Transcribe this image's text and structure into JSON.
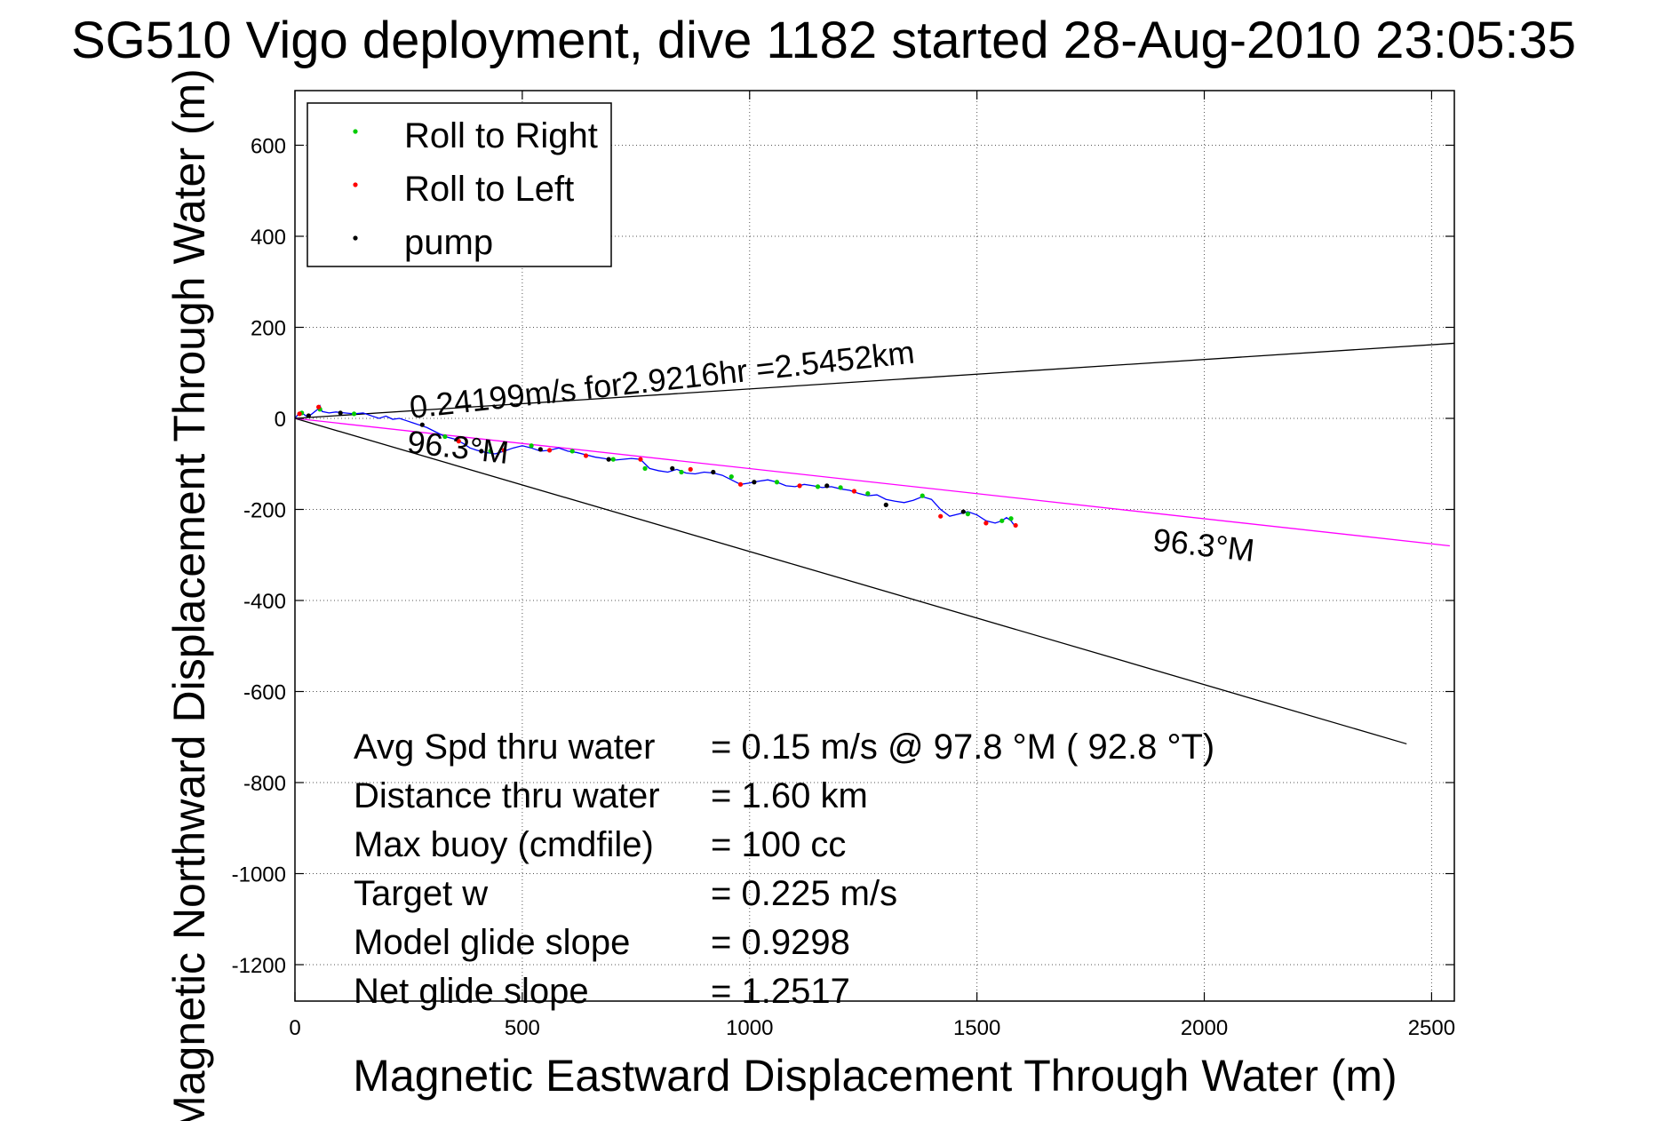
{
  "chart_data": {
    "type": "line",
    "title": "SG510 Vigo deployment, dive 1182 started 28-Aug-2010 23:05:35",
    "xlabel": "Magnetic Eastward Displacement Through Water (m)",
    "ylabel": "Magnetic Northward Displacement Through Water (m)",
    "xlim": [
      0,
      2550
    ],
    "ylim": [
      -1280,
      720
    ],
    "xticks": [
      0,
      500,
      1000,
      1500,
      2000,
      2500
    ],
    "yticks": [
      600,
      400,
      200,
      0,
      -200,
      -400,
      -600,
      -800,
      -1000,
      -1200
    ],
    "grid": true,
    "legend_position": "top-left",
    "legend": [
      {
        "label": "Roll to Right",
        "color": "#00cc00"
      },
      {
        "label": "Roll to Left",
        "color": "#ff0000"
      },
      {
        "label": "pump",
        "color": "#000000"
      }
    ],
    "series": [
      {
        "color": "#0000ff",
        "x": [
          0,
          8,
          15,
          25,
          35,
          50,
          55,
          60,
          75,
          90,
          110,
          130,
          150,
          170,
          185,
          200,
          215,
          230,
          245,
          260,
          275,
          290,
          310,
          330,
          350,
          370,
          385,
          400,
          420,
          440,
          460,
          480,
          500,
          520,
          540,
          560,
          580,
          600,
          620,
          640,
          660,
          680,
          700,
          720,
          740,
          760,
          780,
          800,
          820,
          840,
          860,
          880,
          900,
          920,
          940,
          960,
          980,
          1000,
          1020,
          1040,
          1060,
          1080,
          1100,
          1120,
          1140,
          1160,
          1180,
          1200,
          1220,
          1240,
          1260,
          1280,
          1300,
          1320,
          1340,
          1360,
          1380,
          1400,
          1420,
          1440,
          1460,
          1480,
          1500,
          1520,
          1540,
          1555,
          1565,
          1575,
          1580,
          1585
        ],
        "y": [
          0,
          10,
          12,
          5,
          8,
          20,
          28,
          15,
          12,
          14,
          12,
          10,
          12,
          5,
          0,
          5,
          -2,
          0,
          -5,
          -10,
          -15,
          -20,
          -30,
          -40,
          -45,
          -55,
          -65,
          -70,
          -75,
          -78,
          -72,
          -65,
          -60,
          -65,
          -72,
          -70,
          -65,
          -72,
          -75,
          -80,
          -85,
          -88,
          -92,
          -90,
          -88,
          -90,
          -110,
          -115,
          -118,
          -112,
          -120,
          -122,
          -118,
          -120,
          -125,
          -135,
          -145,
          -142,
          -138,
          -135,
          -140,
          -148,
          -150,
          -145,
          -148,
          -152,
          -150,
          -155,
          -158,
          -165,
          -170,
          -168,
          -178,
          -182,
          -185,
          -180,
          -172,
          -178,
          -200,
          -215,
          -210,
          -205,
          -212,
          -225,
          -230,
          -225,
          -218,
          -225,
          -232,
          -235
        ]
      },
      {
        "color": "#00cc00",
        "x": [
          15,
          55,
          130,
          330,
          430,
          520,
          610,
          700,
          770,
          850,
          960,
          1060,
          1150,
          1200,
          1260,
          1380,
          1480,
          1555,
          1575
        ],
        "y": [
          12,
          20,
          10,
          -40,
          -72,
          -60,
          -72,
          -90,
          -110,
          -118,
          -128,
          -140,
          -150,
          -152,
          -165,
          -170,
          -210,
          -225,
          -220
        ]
      },
      {
        "color": "#ff0000",
        "x": [
          10,
          52,
          360,
          460,
          560,
          640,
          760,
          870,
          980,
          1110,
          1230,
          1420,
          1520,
          1585
        ],
        "y": [
          10,
          25,
          -50,
          -70,
          -70,
          -82,
          -90,
          -112,
          -145,
          -148,
          -160,
          -215,
          -230,
          -235
        ]
      },
      {
        "color": "#000000",
        "x": [
          30,
          100,
          280,
          410,
          540,
          690,
          830,
          920,
          1010,
          1170,
          1300,
          1470
        ],
        "y": [
          6,
          12,
          -14,
          -72,
          -68,
          -90,
          -110,
          -118,
          -140,
          -148,
          -190,
          -205
        ]
      }
    ],
    "reference_lines": [
      {
        "color": "#000000",
        "x": [
          0,
          2550
        ],
        "y": [
          0,
          165
        ]
      },
      {
        "color": "#000000",
        "x": [
          0,
          2445
        ],
        "y": [
          0,
          -715
        ]
      },
      {
        "color": "#ff00ff",
        "x": [
          0,
          2540
        ],
        "y": [
          0,
          -280
        ]
      }
    ],
    "annotations": [
      {
        "text": "0.24199m/s for2.9216hr =2.5452km",
        "x": 255,
        "y": 0,
        "rotate": -6.3
      },
      {
        "text": "96.3°M",
        "x": 245,
        "y": -75,
        "rotate": 6.3
      },
      {
        "text": "96.3°M",
        "x": 1885,
        "y": -290,
        "rotate": 6.3
      }
    ],
    "stats": [
      {
        "label": "Avg Spd thru water",
        "value": "=  0.15 m/s @  97.8 °M ( 92.8 °T)"
      },
      {
        "label": "Distance thru water",
        "value": "=  1.60 km"
      },
      {
        "label": "Max buoy (cmdfile)",
        "value": "= 100 cc"
      },
      {
        "label": "Target w",
        "value": "= 0.225 m/s"
      },
      {
        "label": "Model glide slope",
        "value": "= 0.9298"
      },
      {
        "label": "Net glide slope",
        "value": "= 1.2517"
      }
    ]
  }
}
